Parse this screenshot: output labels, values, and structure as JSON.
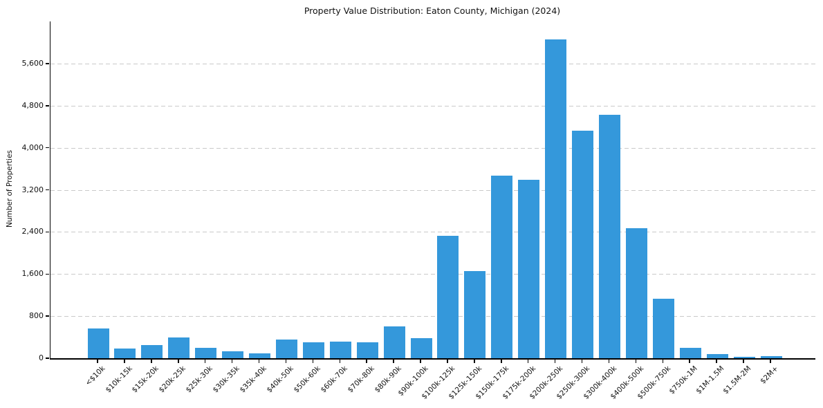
{
  "chart_data": {
    "type": "bar",
    "title": "Property Value Distribution: Eaton County, Michigan (2024)",
    "xlabel": "",
    "ylabel": "Number of Properties",
    "categories": [
      "<$10k",
      "$10k-15k",
      "$15k-20k",
      "$20k-25k",
      "$25k-30k",
      "$30k-35k",
      "$35k-40k",
      "$40k-50k",
      "$50k-60k",
      "$60k-70k",
      "$70k-80k",
      "$80k-90k",
      "$90k-100k",
      "$100k-125k",
      "$125k-150k",
      "$150k-175k",
      "$175k-200k",
      "$200k-250k",
      "$250k-300k",
      "$300k-400k",
      "$400k-500k",
      "$500k-750k",
      "$750k-1M",
      "$1M-1.5M",
      "$1.5M-2M",
      "$2M+"
    ],
    "values": [
      560,
      180,
      250,
      390,
      200,
      130,
      90,
      350,
      300,
      310,
      300,
      600,
      380,
      2330,
      1650,
      3470,
      3390,
      6060,
      4320,
      4620,
      2470,
      1130,
      195,
      80,
      20,
      40
    ],
    "yticks": [
      0,
      800,
      1600,
      2400,
      3200,
      4000,
      4800,
      5600
    ],
    "ytick_labels": [
      "0",
      "800",
      "1,600",
      "2,400",
      "3,200",
      "4,000",
      "4,800",
      "5,600"
    ],
    "ylim": [
      0,
      6400
    ],
    "grid": "horizontal dashed",
    "legend_position": "none",
    "bar_color": "#3498db",
    "gridline_color": "#c9c9c9",
    "text_color": "#111111"
  }
}
